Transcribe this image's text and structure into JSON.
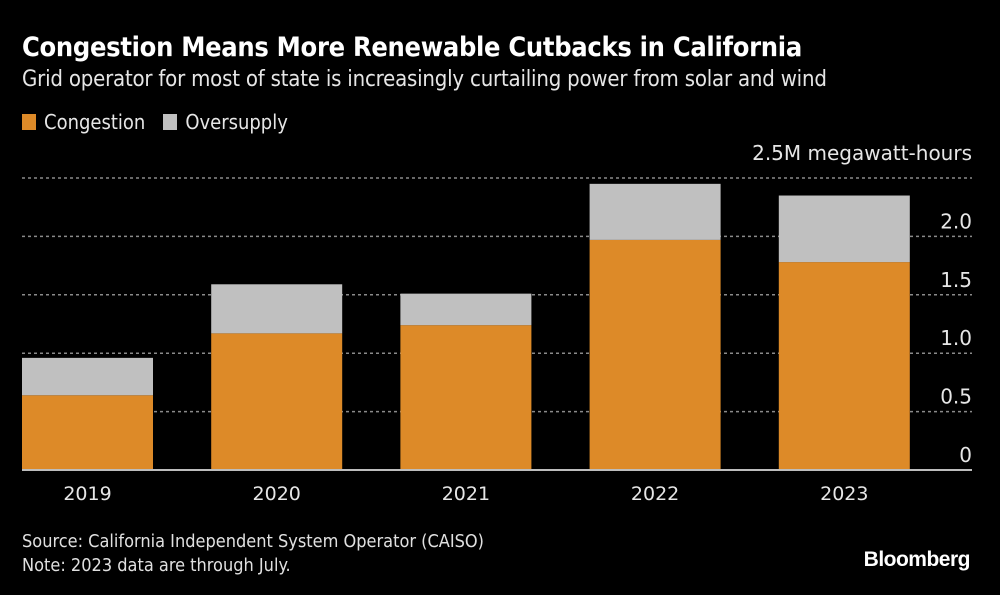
{
  "header": {
    "title": "Congestion Means More Renewable Cutbacks in California",
    "subtitle": "Grid operator for most of state is increasingly curtailing power from solar and wind"
  },
  "legend": [
    {
      "label": "Congestion",
      "color": "#dd8a28"
    },
    {
      "label": "Oversupply",
      "color": "#c0c0c0"
    }
  ],
  "footer": {
    "source": "Source: California Independent System Operator (CAISO)",
    "note": "Note: 2023 data are through July.",
    "brand": "Bloomberg"
  },
  "chart_data": {
    "type": "bar",
    "stacked": true,
    "title": "Congestion Means More Renewable Cutbacks in California",
    "subtitle": "Grid operator for most of state is increasingly curtailing power from solar and wind",
    "categories": [
      "2019",
      "2020",
      "2021",
      "2022",
      "2023"
    ],
    "series": [
      {
        "name": "Congestion",
        "color": "#dd8a28",
        "values": [
          0.64,
          1.17,
          1.24,
          1.97,
          1.78
        ]
      },
      {
        "name": "Oversupply",
        "color": "#c0c0c0",
        "values": [
          0.32,
          0.42,
          0.27,
          0.48,
          0.57
        ]
      }
    ],
    "ylabel": "2.5M megawatt-hours",
    "ylim": [
      0,
      2.5
    ],
    "yticks": [
      0,
      0.5,
      1.0,
      1.5,
      2.0,
      2.5
    ],
    "ytick_labels": [
      "0",
      "0.5",
      "1.0",
      "1.5",
      "2.0",
      "2.5M megawatt-hours"
    ],
    "grid": true,
    "y_axis_side": "right",
    "legend_position": "top-left"
  }
}
